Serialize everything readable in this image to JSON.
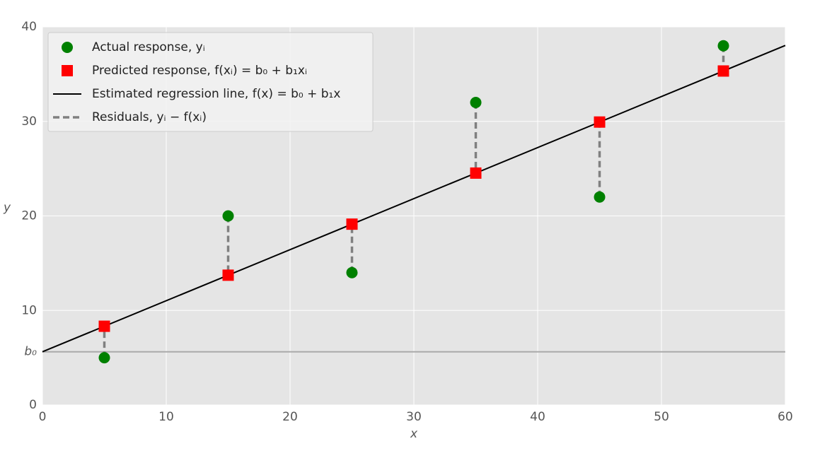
{
  "chart_data": {
    "type": "scatter",
    "xlabel": "x",
    "ylabel": "y",
    "xlim": [
      0,
      60
    ],
    "ylim": [
      0,
      40
    ],
    "xticks": [
      0,
      10,
      20,
      30,
      40,
      50,
      60
    ],
    "yticks": [
      0,
      {
        "value": 5.63,
        "label": "b₀"
      },
      10,
      20,
      30,
      40
    ],
    "grid": true,
    "legend": "upper left",
    "series": [
      {
        "name": "Actual response, yᵢ",
        "marker": "circle",
        "color": "#008000",
        "x": [
          5,
          15,
          25,
          35,
          45,
          55
        ],
        "values": [
          5,
          20,
          14,
          32,
          22,
          38
        ]
      },
      {
        "name": "Predicted response, f(xᵢ) = b₀ + b₁xᵢ",
        "marker": "square",
        "color": "#ff0000",
        "x": [
          5,
          15,
          25,
          35,
          45,
          55
        ],
        "values": [
          8.33,
          13.73,
          19.13,
          24.53,
          29.93,
          35.33
        ]
      },
      {
        "name": "Estimated regression line, f(x) = b₀ + b₁x",
        "marker": "line",
        "color": "#000000",
        "x": [
          0,
          60
        ],
        "values": [
          5.63,
          38.03
        ]
      },
      {
        "name": "Residuals, yᵢ − f(xᵢ)",
        "marker": "dashed",
        "color": "#808080"
      }
    ]
  }
}
